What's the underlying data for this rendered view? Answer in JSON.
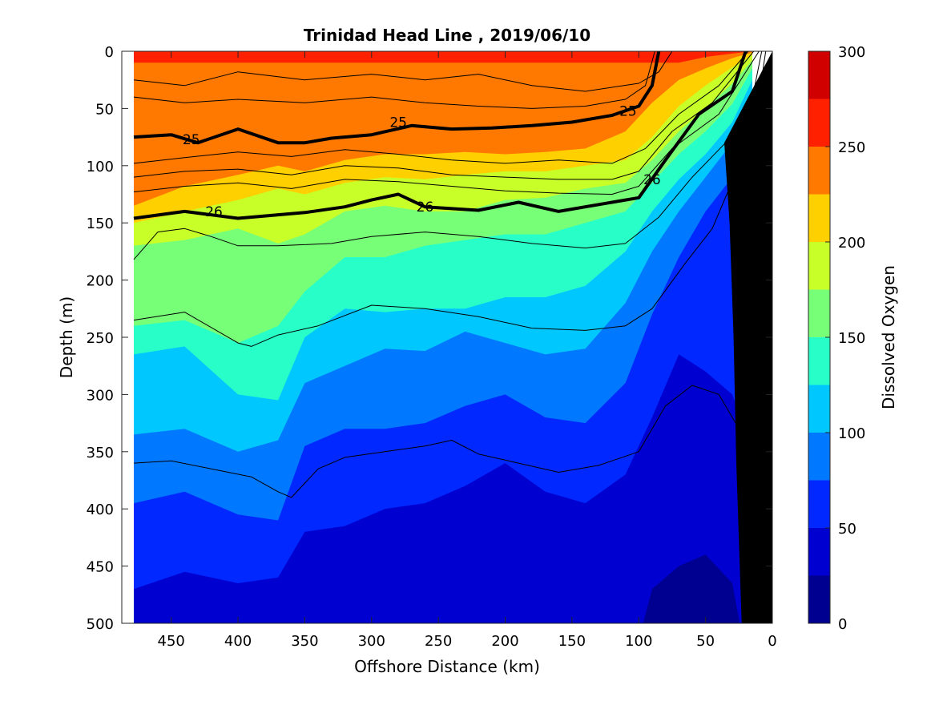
{
  "chart_data": {
    "type": "heatmap",
    "title": "Trinidad Head Line , 2019/06/10",
    "xlabel": "Offshore Distance (km)",
    "ylabel": "Depth (m)",
    "xlim": [
      487,
      0
    ],
    "ylim": [
      0,
      500
    ],
    "x_reversed": true,
    "y_reversed": true,
    "x_ticks": [
      "450",
      "400",
      "350",
      "300",
      "250",
      "200",
      "150",
      "100",
      "50",
      "0"
    ],
    "y_ticks": [
      "0",
      "50",
      "100",
      "150",
      "200",
      "250",
      "300",
      "350",
      "400",
      "450",
      "500"
    ],
    "data_x_range_km": [
      478,
      0
    ],
    "colorbar": {
      "label": "Dissolved Oxygen",
      "range": [
        0,
        300
      ],
      "ticks": [
        "0",
        "50",
        "100",
        "150",
        "200",
        "250",
        "300"
      ],
      "levels": [
        0,
        25,
        50,
        75,
        100,
        125,
        150,
        175,
        200,
        225,
        250,
        275,
        300
      ],
      "colors": [
        "#000090",
        "#0000d0",
        "#0028ff",
        "#0078ff",
        "#00c8ff",
        "#28ffc8",
        "#78ff78",
        "#c8ff28",
        "#ffd000",
        "#ff7800",
        "#ff2000",
        "#d00000"
      ]
    },
    "oxygen_field_profiles": [
      {
        "x": 478,
        "depth_at_level": {
          "250": 10,
          "225": 135,
          "200": 150,
          "175": 170,
          "150": 240,
          "125": 265,
          "100": 335,
          "75": 395,
          "50": 470,
          "25": 560
        }
      },
      {
        "x": 440,
        "depth_at_level": {
          "250": 10,
          "225": 118,
          "200": 140,
          "175": 165,
          "150": 235,
          "125": 258,
          "100": 330,
          "75": 385,
          "50": 455,
          "25": 560
        }
      },
      {
        "x": 400,
        "depth_at_level": {
          "250": 10,
          "225": 108,
          "200": 130,
          "175": 155,
          "150": 255,
          "125": 300,
          "100": 350,
          "75": 405,
          "50": 465,
          "25": 560
        }
      },
      {
        "x": 370,
        "depth_at_level": {
          "250": 10,
          "225": 100,
          "200": 120,
          "175": 168,
          "150": 240,
          "125": 305,
          "100": 340,
          "75": 410,
          "50": 460,
          "25": 560
        }
      },
      {
        "x": 350,
        "depth_at_level": {
          "250": 10,
          "225": 105,
          "200": 125,
          "175": 160,
          "150": 210,
          "125": 250,
          "100": 290,
          "75": 345,
          "50": 420,
          "25": 560
        }
      },
      {
        "x": 320,
        "depth_at_level": {
          "250": 10,
          "225": 95,
          "200": 115,
          "175": 140,
          "150": 180,
          "125": 225,
          "100": 275,
          "75": 330,
          "50": 415,
          "25": 560
        }
      },
      {
        "x": 290,
        "depth_at_level": {
          "250": 10,
          "225": 90,
          "200": 110,
          "175": 135,
          "150": 180,
          "125": 228,
          "100": 260,
          "75": 330,
          "50": 400,
          "25": 560
        }
      },
      {
        "x": 260,
        "depth_at_level": {
          "250": 10,
          "225": 90,
          "200": 112,
          "175": 140,
          "150": 170,
          "125": 225,
          "100": 262,
          "75": 325,
          "50": 395,
          "25": 560
        }
      },
      {
        "x": 230,
        "depth_at_level": {
          "250": 10,
          "225": 88,
          "200": 108,
          "175": 140,
          "150": 165,
          "125": 225,
          "100": 245,
          "75": 310,
          "50": 380,
          "25": 560
        }
      },
      {
        "x": 200,
        "depth_at_level": {
          "250": 10,
          "225": 90,
          "200": 105,
          "175": 130,
          "150": 160,
          "125": 215,
          "100": 255,
          "75": 300,
          "50": 360,
          "25": 560
        }
      },
      {
        "x": 170,
        "depth_at_level": {
          "250": 10,
          "225": 88,
          "200": 105,
          "175": 128,
          "150": 160,
          "125": 215,
          "100": 265,
          "75": 320,
          "50": 385,
          "25": 560
        }
      },
      {
        "x": 140,
        "depth_at_level": {
          "250": 10,
          "225": 85,
          "200": 100,
          "175": 120,
          "150": 150,
          "125": 205,
          "100": 260,
          "75": 325,
          "50": 395,
          "25": 560
        }
      },
      {
        "x": 110,
        "depth_at_level": {
          "250": 10,
          "225": 70,
          "200": 95,
          "175": 115,
          "150": 140,
          "125": 175,
          "100": 220,
          "75": 290,
          "50": 370,
          "25": 560
        }
      },
      {
        "x": 90,
        "depth_at_level": {
          "250": 10,
          "225": 45,
          "200": 75,
          "175": 95,
          "150": 115,
          "125": 140,
          "100": 175,
          "75": 230,
          "50": 320,
          "25": 470
        }
      },
      {
        "x": 70,
        "depth_at_level": {
          "250": 10,
          "225": 25,
          "200": 48,
          "175": 70,
          "150": 90,
          "125": 112,
          "100": 140,
          "75": 180,
          "50": 265,
          "25": 450
        }
      },
      {
        "x": 50,
        "depth_at_level": {
          "250": 5,
          "225": 15,
          "200": 30,
          "175": 50,
          "150": 70,
          "125": 90,
          "100": 110,
          "75": 140,
          "50": 280,
          "25": 440
        }
      },
      {
        "x": 30,
        "depth_at_level": {
          "250": 2,
          "225": 6,
          "200": 14,
          "175": 28,
          "150": 46,
          "125": 62,
          "100": 80,
          "75": 110,
          "50": 300,
          "25": 465
        }
      },
      {
        "x": 15,
        "depth_at_level": {
          "250": 0,
          "225": 1,
          "200": 3,
          "175": 8,
          "150": 15,
          "125": 25,
          "100": 40,
          "75": 70,
          "50": 350,
          "25": 560
        }
      }
    ],
    "isopycnals": [
      {
        "label": "25",
        "bold": true,
        "points": [
          [
            478,
            75
          ],
          [
            450,
            73
          ],
          [
            430,
            80
          ],
          [
            400,
            68
          ],
          [
            370,
            80
          ],
          [
            350,
            80
          ],
          [
            330,
            76
          ],
          [
            300,
            73
          ],
          [
            270,
            65
          ],
          [
            240,
            68
          ],
          [
            210,
            67
          ],
          [
            180,
            65
          ],
          [
            150,
            62
          ],
          [
            120,
            56
          ],
          [
            100,
            48
          ],
          [
            90,
            30
          ],
          [
            85,
            0
          ]
        ],
        "label_positions": [
          [
            435,
            77
          ],
          [
            280,
            62
          ],
          [
            108,
            52
          ]
        ]
      },
      {
        "label": "26",
        "bold": true,
        "points": [
          [
            478,
            146
          ],
          [
            440,
            140
          ],
          [
            420,
            143
          ],
          [
            400,
            146
          ],
          [
            350,
            141
          ],
          [
            320,
            136
          ],
          [
            300,
            130
          ],
          [
            280,
            125
          ],
          [
            260,
            136
          ],
          [
            220,
            139
          ],
          [
            190,
            132
          ],
          [
            160,
            140
          ],
          [
            120,
            132
          ],
          [
            100,
            128
          ],
          [
            80,
            95
          ],
          [
            55,
            55
          ],
          [
            30,
            35
          ],
          [
            20,
            0
          ]
        ],
        "label_positions": [
          [
            418,
            140
          ],
          [
            260,
            136
          ],
          [
            90,
            112
          ]
        ]
      },
      {
        "label": "",
        "bold": false,
        "points": [
          [
            478,
            25
          ],
          [
            440,
            30
          ],
          [
            400,
            18
          ],
          [
            350,
            25
          ],
          [
            300,
            20
          ],
          [
            260,
            25
          ],
          [
            220,
            20
          ],
          [
            180,
            30
          ],
          [
            140,
            35
          ],
          [
            100,
            28
          ],
          [
            85,
            18
          ],
          [
            75,
            0
          ]
        ],
        "label_positions": []
      },
      {
        "label": "",
        "bold": false,
        "points": [
          [
            478,
            40
          ],
          [
            440,
            45
          ],
          [
            400,
            42
          ],
          [
            350,
            45
          ],
          [
            300,
            40
          ],
          [
            260,
            45
          ],
          [
            220,
            48
          ],
          [
            180,
            50
          ],
          [
            140,
            48
          ],
          [
            110,
            42
          ],
          [
            95,
            30
          ],
          [
            88,
            0
          ]
        ],
        "label_positions": []
      },
      {
        "label": "",
        "bold": false,
        "points": [
          [
            478,
            98
          ],
          [
            440,
            93
          ],
          [
            400,
            88
          ],
          [
            360,
            92
          ],
          [
            320,
            86
          ],
          [
            280,
            90
          ],
          [
            240,
            95
          ],
          [
            200,
            98
          ],
          [
            160,
            95
          ],
          [
            120,
            98
          ],
          [
            95,
            85
          ],
          [
            70,
            55
          ],
          [
            40,
            30
          ],
          [
            18,
            0
          ]
        ],
        "label_positions": []
      },
      {
        "label": "",
        "bold": false,
        "points": [
          [
            478,
            110
          ],
          [
            440,
            105
          ],
          [
            400,
            103
          ],
          [
            360,
            108
          ],
          [
            320,
            100
          ],
          [
            280,
            102
          ],
          [
            240,
            108
          ],
          [
            200,
            110
          ],
          [
            160,
            112
          ],
          [
            120,
            112
          ],
          [
            100,
            105
          ],
          [
            75,
            70
          ],
          [
            45,
            45
          ],
          [
            14,
            0
          ]
        ],
        "label_positions": []
      },
      {
        "label": "",
        "bold": false,
        "points": [
          [
            478,
            123
          ],
          [
            440,
            118
          ],
          [
            400,
            115
          ],
          [
            360,
            120
          ],
          [
            320,
            112
          ],
          [
            280,
            114
          ],
          [
            240,
            118
          ],
          [
            200,
            122
          ],
          [
            160,
            124
          ],
          [
            120,
            125
          ],
          [
            100,
            118
          ],
          [
            75,
            85
          ],
          [
            40,
            55
          ],
          [
            10,
            0
          ]
        ],
        "label_positions": []
      },
      {
        "label": "",
        "bold": false,
        "points": [
          [
            478,
            182
          ],
          [
            460,
            158
          ],
          [
            440,
            155
          ],
          [
            420,
            162
          ],
          [
            400,
            170
          ],
          [
            370,
            170
          ],
          [
            330,
            168
          ],
          [
            300,
            162
          ],
          [
            260,
            158
          ],
          [
            220,
            162
          ],
          [
            180,
            168
          ],
          [
            140,
            172
          ],
          [
            110,
            168
          ],
          [
            85,
            145
          ],
          [
            60,
            110
          ],
          [
            35,
            80
          ],
          [
            10,
            40
          ],
          [
            5,
            0
          ]
        ],
        "label_positions": []
      },
      {
        "label": "",
        "bold": false,
        "points": [
          [
            478,
            235
          ],
          [
            440,
            228
          ],
          [
            400,
            255
          ],
          [
            390,
            258
          ],
          [
            370,
            248
          ],
          [
            340,
            240
          ],
          [
            300,
            222
          ],
          [
            260,
            225
          ],
          [
            220,
            232
          ],
          [
            180,
            242
          ],
          [
            140,
            244
          ],
          [
            110,
            240
          ],
          [
            90,
            225
          ],
          [
            65,
            185
          ],
          [
            45,
            155
          ],
          [
            25,
            100
          ],
          [
            8,
            0
          ]
        ],
        "label_positions": []
      },
      {
        "label": "",
        "bold": false,
        "points": [
          [
            478,
            360
          ],
          [
            450,
            358
          ],
          [
            420,
            365
          ],
          [
            390,
            372
          ],
          [
            370,
            385
          ],
          [
            360,
            390
          ],
          [
            340,
            365
          ],
          [
            320,
            355
          ],
          [
            290,
            350
          ],
          [
            260,
            345
          ],
          [
            240,
            340
          ],
          [
            220,
            352
          ],
          [
            190,
            360
          ],
          [
            160,
            368
          ],
          [
            130,
            362
          ],
          [
            100,
            350
          ],
          [
            80,
            310
          ],
          [
            60,
            292
          ],
          [
            40,
            300
          ],
          [
            25,
            330
          ],
          [
            18,
            360
          ]
        ],
        "label_positions": []
      }
    ],
    "bottom_topography": [
      [
        23,
        500
      ],
      [
        27,
        360
      ],
      [
        29,
        250
      ],
      [
        32,
        150
      ],
      [
        36,
        80
      ],
      [
        0,
        0
      ],
      [
        0,
        500
      ]
    ]
  }
}
